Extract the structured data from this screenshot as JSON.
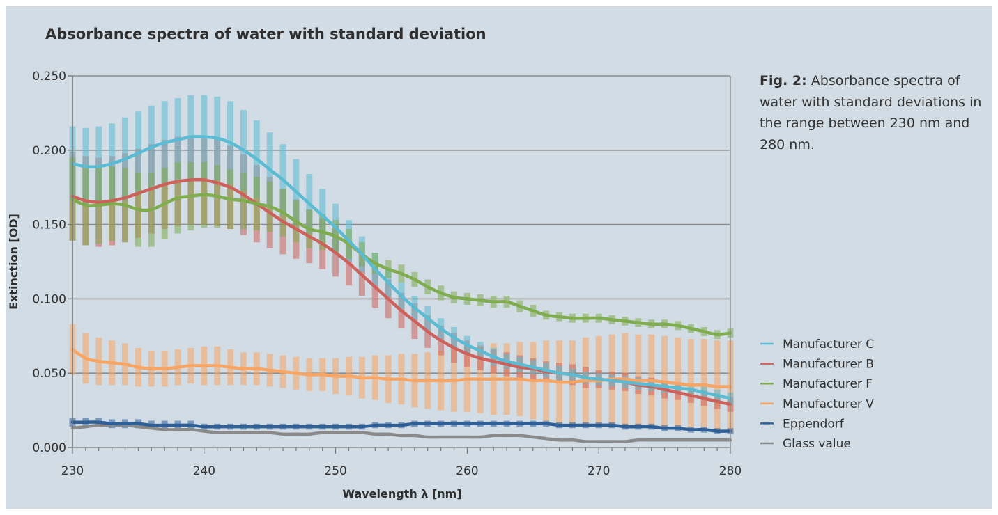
{
  "chart_data": {
    "type": "line",
    "title": "Absorbance spectra of water with standard deviation",
    "caption_label": "Fig. 2:",
    "caption_text": "Absorbance spectra of water with standard deviations in the range between 230 nm and 280 nm.",
    "xlabel": "Wavelength λ [nm]",
    "ylabel": "Extinction [OD]",
    "xlim": [
      230,
      280
    ],
    "ylim": [
      0.0,
      0.25
    ],
    "x_ticks": [
      "230",
      "240",
      "250",
      "260",
      "270",
      "280"
    ],
    "y_ticks": [
      "0.000",
      "0.050",
      "0.100",
      "0.150",
      "0.200",
      "0.250"
    ],
    "grid": true,
    "legend_position": "right",
    "error_bars": true,
    "x": [
      230,
      231,
      232,
      233,
      234,
      235,
      236,
      237,
      238,
      239,
      240,
      241,
      242,
      243,
      244,
      245,
      246,
      247,
      248,
      249,
      250,
      251,
      252,
      253,
      254,
      255,
      256,
      257,
      258,
      259,
      260,
      261,
      262,
      263,
      264,
      265,
      266,
      267,
      268,
      269,
      270,
      271,
      272,
      273,
      274,
      275,
      276,
      277,
      278,
      279,
      280
    ],
    "series": [
      {
        "name": "Manufacturer C",
        "color": "#5bbbd2",
        "values": [
          0.191,
          0.189,
          0.189,
          0.191,
          0.194,
          0.198,
          0.202,
          0.205,
          0.207,
          0.209,
          0.209,
          0.208,
          0.205,
          0.2,
          0.194,
          0.187,
          0.18,
          0.172,
          0.164,
          0.156,
          0.148,
          0.139,
          0.13,
          0.12,
          0.111,
          0.102,
          0.094,
          0.087,
          0.08,
          0.074,
          0.069,
          0.065,
          0.061,
          0.058,
          0.056,
          0.054,
          0.052,
          0.05,
          0.049,
          0.047,
          0.046,
          0.045,
          0.044,
          0.043,
          0.042,
          0.041,
          0.04,
          0.039,
          0.037,
          0.035,
          0.033
        ],
        "sd": [
          0.025,
          0.026,
          0.027,
          0.027,
          0.028,
          0.028,
          0.028,
          0.028,
          0.028,
          0.028,
          0.028,
          0.028,
          0.028,
          0.027,
          0.026,
          0.025,
          0.024,
          0.022,
          0.02,
          0.018,
          0.016,
          0.014,
          0.012,
          0.011,
          0.01,
          0.009,
          0.008,
          0.008,
          0.007,
          0.007,
          0.006,
          0.006,
          0.006,
          0.005,
          0.005,
          0.005,
          0.005,
          0.005,
          0.004,
          0.004,
          0.004,
          0.004,
          0.004,
          0.004,
          0.004,
          0.004,
          0.004,
          0.004,
          0.004,
          0.004,
          0.004
        ]
      },
      {
        "name": "Manufacturer B",
        "color": "#cd625d",
        "values": [
          0.169,
          0.166,
          0.165,
          0.166,
          0.168,
          0.171,
          0.174,
          0.177,
          0.179,
          0.18,
          0.18,
          0.178,
          0.175,
          0.17,
          0.164,
          0.158,
          0.152,
          0.147,
          0.142,
          0.137,
          0.131,
          0.124,
          0.116,
          0.108,
          0.1,
          0.092,
          0.085,
          0.078,
          0.072,
          0.067,
          0.063,
          0.06,
          0.058,
          0.056,
          0.054,
          0.053,
          0.051,
          0.05,
          0.049,
          0.047,
          0.046,
          0.045,
          0.044,
          0.042,
          0.041,
          0.039,
          0.037,
          0.035,
          0.033,
          0.031,
          0.029
        ],
        "sd": [
          0.03,
          0.03,
          0.03,
          0.03,
          0.03,
          0.03,
          0.03,
          0.03,
          0.03,
          0.03,
          0.03,
          0.029,
          0.028,
          0.027,
          0.026,
          0.024,
          0.022,
          0.02,
          0.018,
          0.017,
          0.016,
          0.015,
          0.014,
          0.014,
          0.013,
          0.012,
          0.012,
          0.011,
          0.01,
          0.01,
          0.009,
          0.008,
          0.008,
          0.008,
          0.008,
          0.007,
          0.007,
          0.007,
          0.007,
          0.007,
          0.006,
          0.006,
          0.006,
          0.006,
          0.006,
          0.006,
          0.005,
          0.005,
          0.005,
          0.005,
          0.005
        ]
      },
      {
        "name": "Manufacturer F",
        "color": "#7eac4f",
        "values": [
          0.167,
          0.163,
          0.163,
          0.164,
          0.163,
          0.16,
          0.16,
          0.164,
          0.168,
          0.169,
          0.17,
          0.169,
          0.167,
          0.166,
          0.164,
          0.162,
          0.158,
          0.152,
          0.147,
          0.145,
          0.142,
          0.137,
          0.13,
          0.124,
          0.12,
          0.117,
          0.113,
          0.108,
          0.104,
          0.101,
          0.1,
          0.099,
          0.098,
          0.098,
          0.095,
          0.092,
          0.089,
          0.088,
          0.087,
          0.087,
          0.087,
          0.086,
          0.085,
          0.084,
          0.083,
          0.083,
          0.082,
          0.08,
          0.078,
          0.076,
          0.077
        ],
        "sd": [
          0.028,
          0.027,
          0.026,
          0.025,
          0.025,
          0.025,
          0.025,
          0.024,
          0.024,
          0.023,
          0.022,
          0.021,
          0.02,
          0.019,
          0.018,
          0.017,
          0.016,
          0.014,
          0.013,
          0.012,
          0.011,
          0.01,
          0.008,
          0.007,
          0.006,
          0.006,
          0.005,
          0.005,
          0.005,
          0.004,
          0.004,
          0.004,
          0.004,
          0.004,
          0.004,
          0.004,
          0.003,
          0.003,
          0.003,
          0.003,
          0.003,
          0.003,
          0.003,
          0.003,
          0.003,
          0.003,
          0.003,
          0.003,
          0.003,
          0.003,
          0.003
        ]
      },
      {
        "name": "Manufacturer V",
        "color": "#f7a565",
        "values": [
          0.066,
          0.06,
          0.058,
          0.057,
          0.056,
          0.054,
          0.053,
          0.053,
          0.054,
          0.055,
          0.055,
          0.055,
          0.054,
          0.053,
          0.053,
          0.052,
          0.051,
          0.05,
          0.049,
          0.049,
          0.048,
          0.048,
          0.047,
          0.047,
          0.046,
          0.046,
          0.045,
          0.045,
          0.045,
          0.045,
          0.046,
          0.046,
          0.046,
          0.046,
          0.046,
          0.045,
          0.045,
          0.044,
          0.044,
          0.045,
          0.045,
          0.046,
          0.046,
          0.045,
          0.045,
          0.044,
          0.043,
          0.042,
          0.042,
          0.041,
          0.041
        ],
        "sd": [
          0.017,
          0.017,
          0.016,
          0.015,
          0.014,
          0.013,
          0.012,
          0.012,
          0.012,
          0.012,
          0.013,
          0.013,
          0.012,
          0.011,
          0.011,
          0.011,
          0.011,
          0.011,
          0.011,
          0.011,
          0.012,
          0.013,
          0.014,
          0.015,
          0.016,
          0.017,
          0.018,
          0.019,
          0.02,
          0.021,
          0.022,
          0.023,
          0.024,
          0.024,
          0.025,
          0.026,
          0.027,
          0.028,
          0.028,
          0.029,
          0.03,
          0.03,
          0.031,
          0.031,
          0.031,
          0.031,
          0.031,
          0.031,
          0.031,
          0.031,
          0.031
        ]
      },
      {
        "name": "Eppendorf",
        "color": "#2f5f97",
        "values": [
          0.017,
          0.017,
          0.017,
          0.016,
          0.016,
          0.016,
          0.015,
          0.015,
          0.015,
          0.015,
          0.014,
          0.014,
          0.014,
          0.014,
          0.014,
          0.014,
          0.014,
          0.014,
          0.014,
          0.014,
          0.014,
          0.014,
          0.014,
          0.015,
          0.015,
          0.015,
          0.016,
          0.016,
          0.016,
          0.016,
          0.016,
          0.016,
          0.016,
          0.016,
          0.016,
          0.016,
          0.016,
          0.015,
          0.015,
          0.015,
          0.015,
          0.015,
          0.014,
          0.014,
          0.014,
          0.013,
          0.013,
          0.012,
          0.012,
          0.011,
          0.011
        ],
        "sd": [
          0.003,
          0.003,
          0.003,
          0.003,
          0.003,
          0.003,
          0.003,
          0.003,
          0.003,
          0.003,
          0.002,
          0.002,
          0.002,
          0.002,
          0.002,
          0.002,
          0.002,
          0.002,
          0.002,
          0.002,
          0.002,
          0.002,
          0.002,
          0.002,
          0.002,
          0.002,
          0.002,
          0.002,
          0.002,
          0.002,
          0.002,
          0.002,
          0.002,
          0.002,
          0.002,
          0.002,
          0.002,
          0.002,
          0.002,
          0.002,
          0.002,
          0.002,
          0.002,
          0.002,
          0.002,
          0.002,
          0.002,
          0.002,
          0.002,
          0.002,
          0.002
        ]
      },
      {
        "name": "Glass value",
        "color": "#8a8a8a",
        "values": [
          0.013,
          0.014,
          0.015,
          0.015,
          0.015,
          0.014,
          0.013,
          0.012,
          0.012,
          0.012,
          0.011,
          0.01,
          0.01,
          0.01,
          0.01,
          0.01,
          0.009,
          0.009,
          0.009,
          0.01,
          0.01,
          0.01,
          0.01,
          0.009,
          0.009,
          0.008,
          0.008,
          0.007,
          0.007,
          0.007,
          0.007,
          0.007,
          0.008,
          0.008,
          0.008,
          0.007,
          0.006,
          0.005,
          0.005,
          0.004,
          0.004,
          0.004,
          0.004,
          0.005,
          0.005,
          0.005,
          0.005,
          0.005,
          0.005,
          0.005,
          0.005
        ],
        "sd": []
      }
    ]
  }
}
